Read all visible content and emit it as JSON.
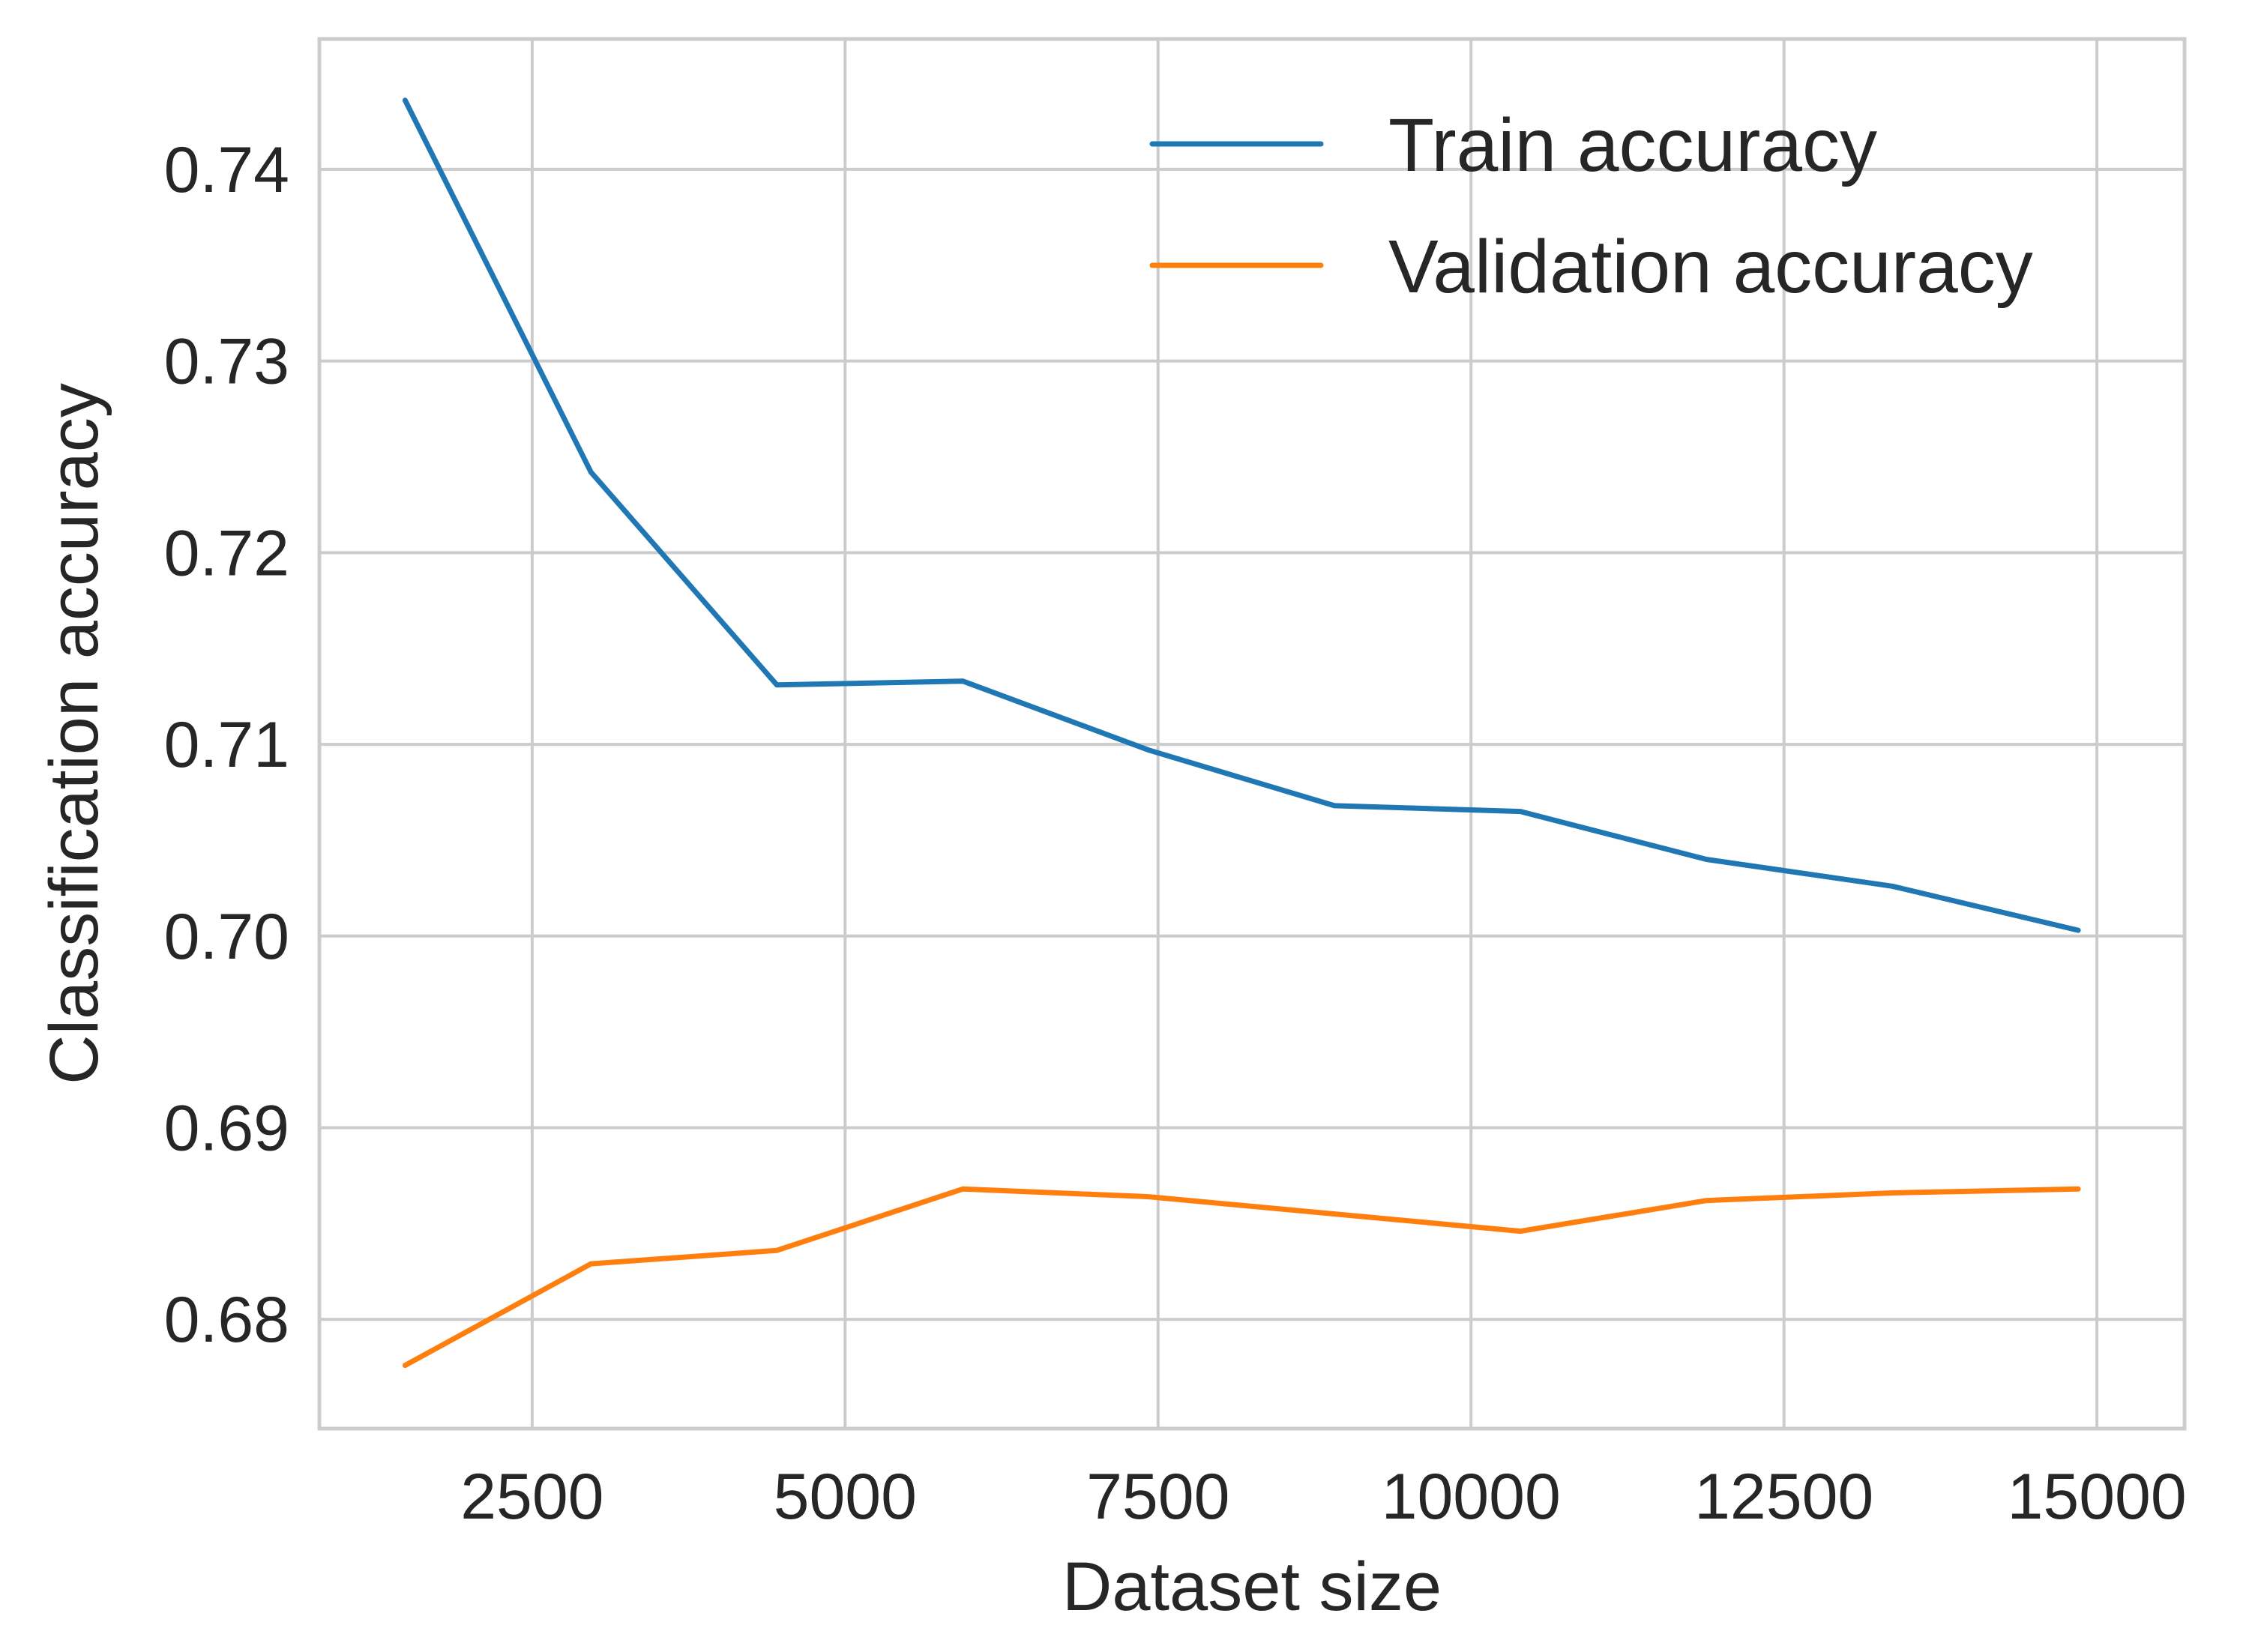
{
  "chart_data": {
    "type": "line",
    "title": "",
    "xlabel": "Dataset size",
    "ylabel": "Classification accuracy",
    "xlim": [
      800,
      15700
    ],
    "ylim": [
      0.6743,
      0.7468
    ],
    "xticks": [
      2500,
      5000,
      7500,
      10000,
      12500,
      15000
    ],
    "yticks": [
      0.68,
      0.69,
      0.7,
      0.71,
      0.72,
      0.73,
      0.74
    ],
    "ytick_labels": [
      "0.68",
      "0.69",
      "0.70",
      "0.71",
      "0.72",
      "0.73",
      "0.74"
    ],
    "grid": true,
    "legend_position": "top-right",
    "x": [
      1485,
      2970,
      4455,
      5940,
      7425,
      8910,
      10395,
      11880,
      13365,
      14850
    ],
    "series": [
      {
        "name": "Train accuracy",
        "color": "#1f77b4",
        "values": [
          0.7436,
          0.7242,
          0.7131,
          0.7133,
          0.7097,
          0.7068,
          0.7065,
          0.704,
          0.7026,
          0.7003
        ]
      },
      {
        "name": "Validation accuracy",
        "color": "#ff7f0e",
        "values": [
          0.6776,
          0.6829,
          0.6836,
          0.6868,
          0.6864,
          0.6855,
          0.6846,
          0.6862,
          0.6866,
          0.6868
        ]
      }
    ]
  }
}
